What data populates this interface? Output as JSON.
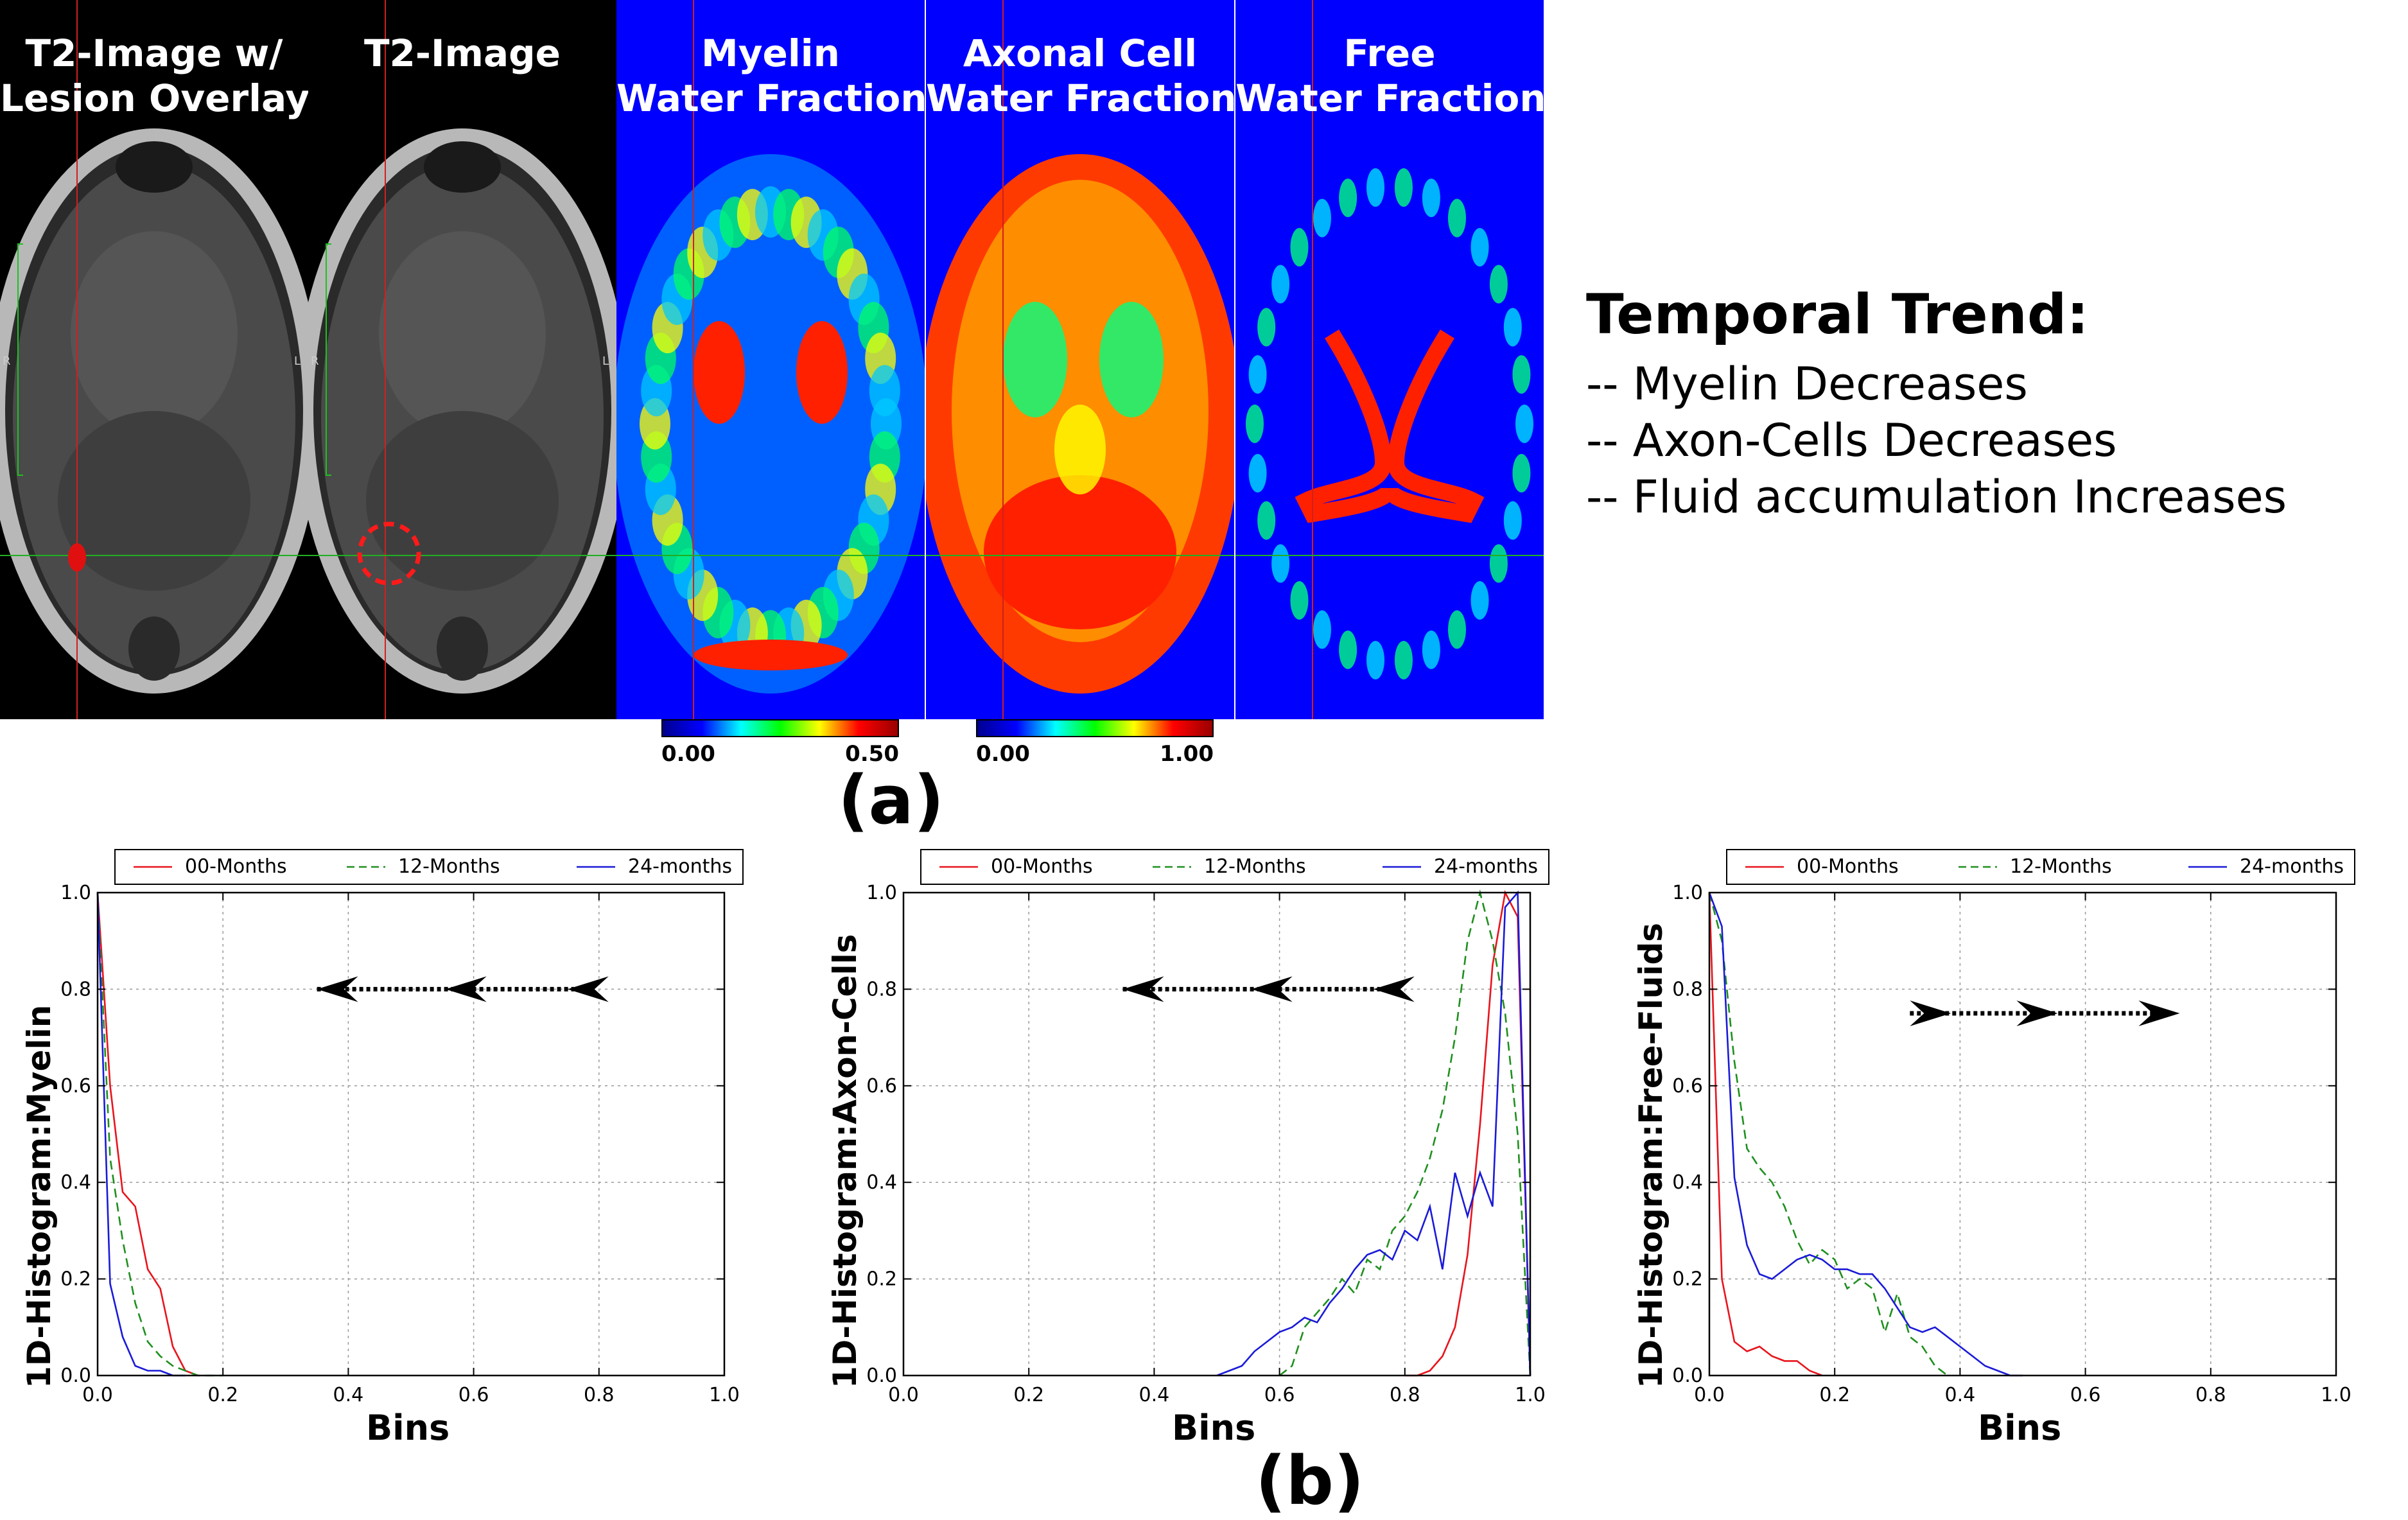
{
  "panels": [
    {
      "title_lines": [
        "T2-Image w/",
        "Lesion Overlay"
      ],
      "kind": "t2-overlay"
    },
    {
      "title_lines": [
        "T2-Image"
      ],
      "kind": "t2"
    },
    {
      "title_lines": [
        "Myelin",
        "Water Fraction"
      ],
      "kind": "myelin-map"
    },
    {
      "title_lines": [
        "Axonal Cell",
        "Water Fraction"
      ],
      "kind": "axon-map"
    },
    {
      "title_lines": [
        "Free",
        "Water Fraction"
      ],
      "kind": "free-map"
    }
  ],
  "orientation_labels": {
    "right": "R",
    "left": "L"
  },
  "colorbars": [
    {
      "min_label": "0.00",
      "max_label": "0.50"
    },
    {
      "min_label": "0.00",
      "max_label": "1.00"
    }
  ],
  "figure_labels": {
    "a": "(a)",
    "b": "(b)"
  },
  "trend": {
    "title": "Temporal Trend:",
    "items": [
      "-- Myelin Decreases",
      "-- Axon-Cells Decreases",
      "-- Fluid accumulation Increases"
    ]
  },
  "colors": {
    "series_00": "#e8141c",
    "series_12": "#1f8f1f",
    "series_24": "#1a1ad8",
    "map_bg": "#0000ff"
  },
  "chart_data": [
    {
      "type": "line",
      "xlabel": "Bins",
      "ylabel": "1D-Histogram:Myelin",
      "xlim": [
        0,
        1
      ],
      "ylim": [
        0,
        1
      ],
      "xticks": [
        "0.0",
        "0.2",
        "0.4",
        "0.6",
        "0.8",
        "1.0"
      ],
      "yticks": [
        "0.0",
        "0.2",
        "0.4",
        "0.6",
        "0.8",
        "1.0"
      ],
      "grid": true,
      "legend_position": "top",
      "trend_arrow": "left",
      "series": [
        {
          "name": "00-Months",
          "style": "solid",
          "color": "#e8141c",
          "x": [
            0,
            0.02,
            0.04,
            0.06,
            0.08,
            0.1,
            0.12,
            0.14,
            0.16
          ],
          "y": [
            1.0,
            0.6,
            0.38,
            0.35,
            0.22,
            0.18,
            0.06,
            0.01,
            0
          ]
        },
        {
          "name": "12-Months",
          "style": "dashed",
          "color": "#1f8f1f",
          "x": [
            0,
            0.02,
            0.04,
            0.06,
            0.08,
            0.1,
            0.12,
            0.14,
            0.16,
            0.2
          ],
          "y": [
            1.0,
            0.45,
            0.28,
            0.15,
            0.07,
            0.04,
            0.02,
            0.01,
            0,
            0
          ]
        },
        {
          "name": "24-months",
          "style": "solid",
          "color": "#1a1ad8",
          "x": [
            0,
            0.02,
            0.04,
            0.06,
            0.08,
            0.1,
            0.12,
            0.14
          ],
          "y": [
            1.0,
            0.19,
            0.08,
            0.02,
            0.01,
            0.01,
            0,
            0
          ]
        }
      ]
    },
    {
      "type": "line",
      "xlabel": "Bins",
      "ylabel": "1D-Histogram:Axon-Cells",
      "xlim": [
        0,
        1
      ],
      "ylim": [
        0,
        1
      ],
      "xticks": [
        "0.0",
        "0.2",
        "0.4",
        "0.6",
        "0.8",
        "1.0"
      ],
      "yticks": [
        "0.0",
        "0.2",
        "0.4",
        "0.6",
        "0.8",
        "1.0"
      ],
      "grid": true,
      "legend_position": "top",
      "trend_arrow": "left",
      "series": [
        {
          "name": "00-Months",
          "style": "solid",
          "color": "#e8141c",
          "x": [
            0.8,
            0.82,
            0.84,
            0.86,
            0.88,
            0.9,
            0.92,
            0.94,
            0.96,
            0.98,
            1.0
          ],
          "y": [
            0,
            0.0,
            0.01,
            0.04,
            0.1,
            0.25,
            0.52,
            0.85,
            1.0,
            0.95,
            0
          ]
        },
        {
          "name": "12-Months",
          "style": "dashed",
          "color": "#1f8f1f",
          "x": [
            0.6,
            0.62,
            0.64,
            0.66,
            0.68,
            0.7,
            0.72,
            0.74,
            0.76,
            0.78,
            0.8,
            0.82,
            0.84,
            0.86,
            0.88,
            0.9,
            0.92,
            0.94,
            0.96,
            0.98,
            1.0
          ],
          "y": [
            0,
            0.02,
            0.1,
            0.13,
            0.16,
            0.2,
            0.17,
            0.24,
            0.22,
            0.3,
            0.33,
            0.38,
            0.45,
            0.55,
            0.7,
            0.9,
            1.0,
            0.9,
            0.75,
            0.5,
            0
          ]
        },
        {
          "name": "24-months",
          "style": "solid",
          "color": "#1a1ad8",
          "x": [
            0.5,
            0.52,
            0.54,
            0.56,
            0.58,
            0.6,
            0.62,
            0.64,
            0.66,
            0.68,
            0.7,
            0.72,
            0.74,
            0.76,
            0.78,
            0.8,
            0.82,
            0.84,
            0.86,
            0.88,
            0.9,
            0.92,
            0.94,
            0.96,
            0.98,
            1.0
          ],
          "y": [
            0,
            0.01,
            0.02,
            0.05,
            0.07,
            0.09,
            0.1,
            0.12,
            0.11,
            0.15,
            0.18,
            0.22,
            0.25,
            0.26,
            0.24,
            0.3,
            0.28,
            0.35,
            0.22,
            0.42,
            0.33,
            0.42,
            0.35,
            0.97,
            1.0,
            0
          ]
        }
      ]
    },
    {
      "type": "line",
      "xlabel": "Bins",
      "ylabel": "1D-Histogram:Free-Fluids",
      "xlim": [
        0,
        1
      ],
      "ylim": [
        0,
        1
      ],
      "xticks": [
        "0.0",
        "0.2",
        "0.4",
        "0.6",
        "0.8",
        "1.0"
      ],
      "yticks": [
        "0.0",
        "0.2",
        "0.4",
        "0.6",
        "0.8",
        "1.0"
      ],
      "grid": true,
      "legend_position": "top",
      "trend_arrow": "right",
      "series": [
        {
          "name": "00-Months",
          "style": "solid",
          "color": "#e8141c",
          "x": [
            0,
            0.02,
            0.04,
            0.06,
            0.08,
            0.1,
            0.12,
            0.14,
            0.16,
            0.18
          ],
          "y": [
            1.0,
            0.2,
            0.07,
            0.05,
            0.06,
            0.04,
            0.03,
            0.03,
            0.01,
            0
          ]
        },
        {
          "name": "12-Months",
          "style": "dashed",
          "color": "#1f8f1f",
          "x": [
            0,
            0.02,
            0.04,
            0.06,
            0.08,
            0.1,
            0.12,
            0.14,
            0.16,
            0.18,
            0.2,
            0.22,
            0.24,
            0.26,
            0.28,
            0.3,
            0.32,
            0.34,
            0.36,
            0.38
          ],
          "y": [
            1.0,
            0.9,
            0.65,
            0.47,
            0.43,
            0.4,
            0.35,
            0.28,
            0.23,
            0.26,
            0.24,
            0.18,
            0.2,
            0.18,
            0.09,
            0.17,
            0.08,
            0.06,
            0.02,
            0
          ]
        },
        {
          "name": "24-months",
          "style": "solid",
          "color": "#1a1ad8",
          "x": [
            0,
            0.02,
            0.04,
            0.06,
            0.08,
            0.1,
            0.12,
            0.14,
            0.16,
            0.18,
            0.2,
            0.22,
            0.24,
            0.26,
            0.28,
            0.3,
            0.32,
            0.34,
            0.36,
            0.38,
            0.4,
            0.42,
            0.44,
            0.46,
            0.48,
            0.5
          ],
          "y": [
            1.0,
            0.93,
            0.41,
            0.27,
            0.21,
            0.2,
            0.22,
            0.24,
            0.25,
            0.24,
            0.22,
            0.22,
            0.21,
            0.21,
            0.18,
            0.14,
            0.1,
            0.09,
            0.1,
            0.08,
            0.06,
            0.04,
            0.02,
            0.01,
            0.0,
            0
          ]
        }
      ]
    }
  ]
}
